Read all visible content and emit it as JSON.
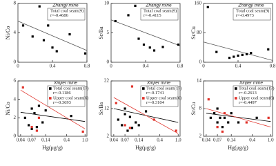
{
  "chart_data": [
    {
      "type": "scatter",
      "title": "Zhangji mine",
      "ylabel": "Ni/Co",
      "log_x": false,
      "xlim": [
        0,
        0.8
      ],
      "xticks": [
        0,
        0.4,
        0.8
      ],
      "ylim": [
        0,
        8
      ],
      "yticks": [
        0,
        4,
        8
      ],
      "series": [
        {
          "name": "Total coal seam(9)",
          "r": "r=-0.4686",
          "color": "#000000",
          "x": [
            0.06,
            0.17,
            0.25,
            0.3,
            0.35,
            0.4,
            0.45,
            0.6,
            0.78
          ],
          "values": [
            5.0,
            3.5,
            7.6,
            3.0,
            5.0,
            2.0,
            1.5,
            3.8,
            1.2
          ]
        }
      ],
      "trendlines": [
        {
          "color": "#555555",
          "x": [
            0,
            0.8
          ],
          "values": [
            5.6,
            1.6
          ]
        }
      ]
    },
    {
      "type": "scatter",
      "title": "Zhangji mine",
      "ylabel": "Sr/Ba",
      "log_x": false,
      "xlim": [
        0,
        0.8
      ],
      "xticks": [
        0,
        0.4,
        0.8
      ],
      "ylim": [
        0,
        10
      ],
      "yticks": [
        0,
        5,
        10
      ],
      "series": [
        {
          "name": "Total coal seam(9)",
          "r": "r=-0.4115",
          "color": "#000000",
          "x": [
            0.05,
            0.2,
            0.28,
            0.32,
            0.38,
            0.45,
            0.5,
            0.6,
            0.78
          ],
          "values": [
            7,
            8,
            9.6,
            4,
            3,
            2.5,
            2,
            2.6,
            3
          ]
        }
      ],
      "trendlines": [
        {
          "color": "#555555",
          "x": [
            0,
            0.8
          ],
          "values": [
            7.2,
            2.8
          ]
        }
      ]
    },
    {
      "type": "scatter",
      "title": "Zhangji mine",
      "ylabel": "Sr/Cu",
      "log_x": false,
      "xlim": [
        0,
        0.8
      ],
      "xticks": [
        0,
        0.4,
        0.8
      ],
      "ylim": [
        0,
        160
      ],
      "yticks": [
        0,
        80,
        160
      ],
      "series": [
        {
          "name": "Total coal seam(9)",
          "r": "r=-0.4973",
          "color": "#000000",
          "x": [
            0.05,
            0.15,
            0.3,
            0.35,
            0.4,
            0.45,
            0.5,
            0.55,
            0.75
          ],
          "values": [
            150,
            28,
            12,
            15,
            18,
            20,
            22,
            25,
            35
          ]
        }
      ],
      "trendlines": [
        {
          "color": "#555555",
          "x": [
            0,
            0.8
          ],
          "values": [
            55,
            5
          ]
        }
      ]
    },
    {
      "type": "scatter",
      "title": "Xinjier mine",
      "ylabel": "Ni/Co",
      "xlabel": "Hg(μg/g)",
      "log_x": true,
      "xlim": [
        0.035,
        1.1
      ],
      "xticks": [
        0.04,
        0.07,
        0.14,
        0.4,
        {
          "value": 1,
          "label": "1.0"
        }
      ],
      "ylim": [
        0,
        6
      ],
      "yticks": [
        0,
        2,
        4,
        6
      ],
      "series": [
        {
          "name": "Total coal seam(17)",
          "r": "r=-0.1186",
          "color": "#000000",
          "x": [
            0.05,
            0.06,
            0.07,
            0.07,
            0.08,
            0.09,
            0.1,
            0.12,
            0.14,
            0.2,
            0.5
          ],
          "values": [
            2.0,
            1.2,
            0.8,
            3.0,
            2.5,
            1.0,
            3.3,
            1.5,
            2.8,
            3.5,
            2.2
          ]
        },
        {
          "name": "Upper coal seam(6)",
          "r": "r=-0.3693",
          "color": "#e0322a",
          "x": [
            0.045,
            0.07,
            0.09,
            0.1,
            0.3,
            0.9
          ],
          "values": [
            5.3,
            1.0,
            0.6,
            2.0,
            4.0,
            0.5
          ]
        }
      ],
      "trendlines": [
        {
          "color": "#000000",
          "x": [
            0.04,
            1
          ],
          "values": [
            2.6,
            1.6
          ]
        },
        {
          "color": "#e0322a",
          "x": [
            0.04,
            1
          ],
          "values": [
            5.0,
            0.8
          ]
        }
      ]
    },
    {
      "type": "scatter",
      "title": "Xinjier mine",
      "ylabel": "Sr/Ba",
      "xlabel": "Hg(μg/g)",
      "log_x": true,
      "xlim": [
        0.035,
        1.1
      ],
      "xticks": [
        0.04,
        0.07,
        0.14,
        0.4,
        {
          "value": 1,
          "label": "1.0"
        }
      ],
      "ylim": [
        2,
        22
      ],
      "yticks": [
        2,
        12,
        22
      ],
      "series": [
        {
          "name": "Total coal seam(17)",
          "r": "r=-0.1741",
          "color": "#000000",
          "x": [
            0.05,
            0.06,
            0.07,
            0.07,
            0.08,
            0.09,
            0.1,
            0.12,
            0.14,
            0.2,
            0.5
          ],
          "values": [
            8,
            6,
            12,
            10,
            4,
            9,
            5,
            7,
            6,
            11,
            14
          ]
        },
        {
          "name": "Upper coal seam(6)",
          "r": "r=-0.3104",
          "color": "#e0322a",
          "x": [
            0.045,
            0.07,
            0.09,
            0.1,
            0.3,
            0.9
          ],
          "values": [
            14,
            6,
            5,
            20,
            8,
            4
          ]
        }
      ],
      "trendlines": [
        {
          "color": "#000000",
          "x": [
            0.04,
            1
          ],
          "values": [
            12,
            7
          ]
        },
        {
          "color": "#e0322a",
          "x": [
            0.04,
            1
          ],
          "values": [
            16,
            3
          ]
        }
      ]
    },
    {
      "type": "scatter",
      "title": "Xinjier mine",
      "ylabel": "Sr/Cu",
      "xlabel": "Hg(μg/g)",
      "log_x": true,
      "xlim": [
        0.035,
        1.1
      ],
      "xticks": [
        0.04,
        0.07,
        0.14,
        0.4,
        {
          "value": 1,
          "label": "1.0"
        }
      ],
      "ylim": [
        2,
        14
      ],
      "yticks": [
        2,
        8,
        14
      ],
      "series": [
        {
          "name": "Total coal seam(17)",
          "r": "r=-0.2613",
          "color": "#000000",
          "x": [
            0.05,
            0.06,
            0.07,
            0.07,
            0.08,
            0.09,
            0.1,
            0.12,
            0.14,
            0.2,
            0.5
          ],
          "values": [
            6,
            7,
            5,
            8,
            6,
            4,
            6,
            5,
            7,
            5,
            6
          ]
        },
        {
          "name": "Upper coal seam(6)",
          "r": "r=-0.4497",
          "color": "#e0322a",
          "x": [
            0.045,
            0.07,
            0.09,
            0.1,
            0.3,
            0.9
          ],
          "values": [
            10,
            4,
            3,
            7,
            5,
            6
          ]
        }
      ],
      "trendlines": [
        {
          "color": "#000000",
          "x": [
            0.04,
            1
          ],
          "values": [
            7,
            5.2
          ]
        },
        {
          "color": "#e0322a",
          "x": [
            0.04,
            1
          ],
          "values": [
            8,
            4
          ]
        }
      ]
    }
  ]
}
